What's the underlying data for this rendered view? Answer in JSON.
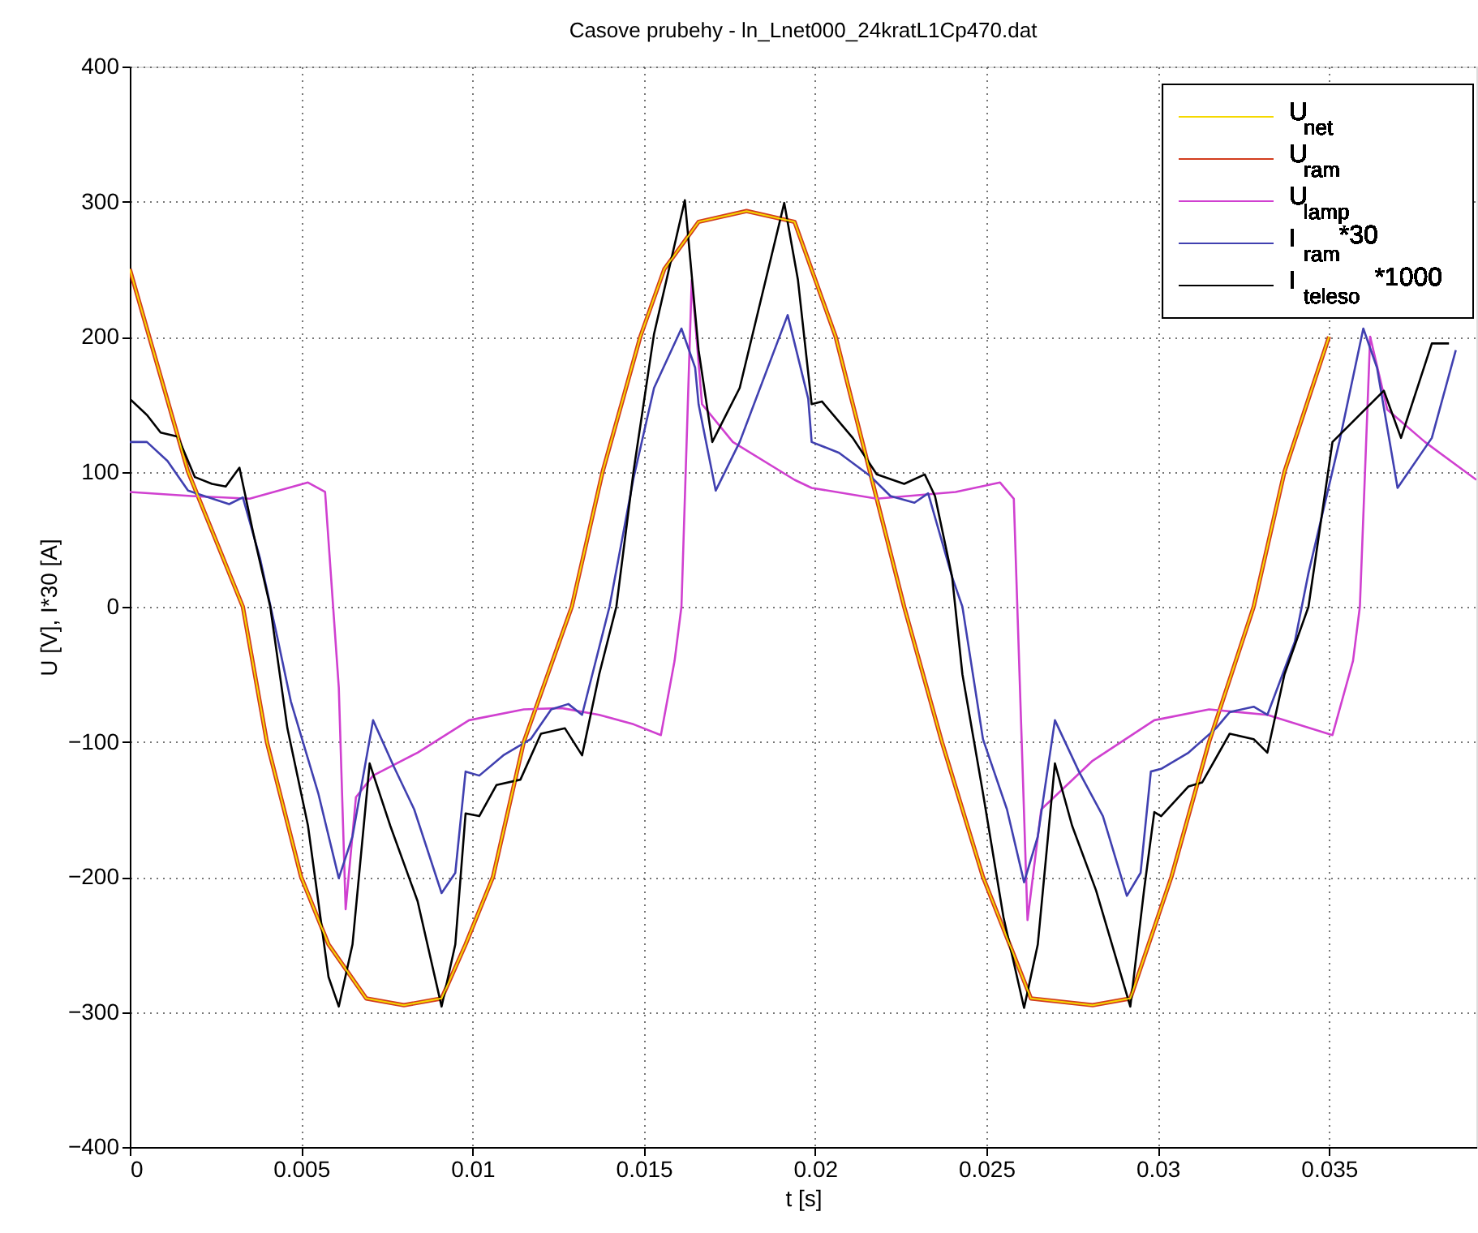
{
  "chart_data": {
    "type": "line",
    "title": "Casove prubehy - ln_Lnet000_24kratL1Cp470.dat",
    "xlabel": "t [s]",
    "ylabel": "U [V], I*30 [A]",
    "xlim": [
      0,
      0.0393
    ],
    "xticks": [
      0,
      0.005,
      0.01,
      0.015,
      0.02,
      0.025,
      0.03,
      0.035
    ],
    "ylim": [
      -400,
      400
    ],
    "yticks": [
      -400,
      -300,
      -200,
      -100,
      0,
      100,
      200,
      300,
      400
    ],
    "grid": true,
    "legend": "top right",
    "line_style": "solid",
    "marker": "none",
    "series": [
      {
        "name": "U$_{net}$",
        "color": "#f5d800",
        "x": [
          0,
          0.0017,
          0.0033,
          0.004,
          0.005,
          0.0058,
          0.0069,
          0.008,
          0.0091,
          0.0098,
          0.0106,
          0.0115,
          0.0129,
          0.0138,
          0.0149,
          0.0156,
          0.0166,
          0.018,
          0.0194,
          0.0206,
          0.0216,
          0.0226,
          0.0237,
          0.0249,
          0.0263,
          0.0281,
          0.0292,
          0.0304,
          0.0315,
          0.0328,
          0.0337,
          0.035
        ],
        "values": [
          250,
          100,
          0,
          -100,
          -200,
          -250,
          -290,
          -295,
          -290,
          -250,
          -200,
          -100,
          0,
          100,
          200,
          250,
          285,
          293,
          285,
          200,
          100,
          0,
          -100,
          -200,
          -290,
          -295,
          -290,
          -200,
          -100,
          0,
          100,
          200
        ]
      },
      {
        "name": "U$_{ram}$",
        "color": "#d23c1e",
        "x": [
          0,
          0.0017,
          0.0033,
          0.004,
          0.005,
          0.0058,
          0.0069,
          0.008,
          0.0091,
          0.0098,
          0.0106,
          0.0115,
          0.0129,
          0.0138,
          0.0149,
          0.0156,
          0.0166,
          0.018,
          0.0194,
          0.0206,
          0.0216,
          0.0226,
          0.0237,
          0.0249,
          0.0263,
          0.0281,
          0.0292,
          0.0304,
          0.0315,
          0.0328,
          0.0337,
          0.035
        ],
        "values": [
          250,
          100,
          0,
          -100,
          -200,
          -250,
          -290,
          -295,
          -290,
          -250,
          -200,
          -100,
          0,
          100,
          200,
          250,
          285,
          293,
          285,
          200,
          100,
          0,
          -100,
          -200,
          -290,
          -295,
          -290,
          -200,
          -100,
          0,
          100,
          200
        ]
      },
      {
        "name": "U$_{lamp}$",
        "color": "#d040d0",
        "x": [
          0,
          0.0018,
          0.0035,
          0.0052,
          0.0057,
          0.0061,
          0.0063,
          0.0066,
          0.0071,
          0.0084,
          0.0099,
          0.0115,
          0.0126,
          0.0137,
          0.0147,
          0.0155,
          0.0159,
          0.0161,
          0.0164,
          0.0167,
          0.0176,
          0.0194,
          0.0199,
          0.0218,
          0.0241,
          0.0254,
          0.0258,
          0.0262,
          0.0266,
          0.0281,
          0.0299,
          0.0315,
          0.0332,
          0.0351,
          0.0357,
          0.0359,
          0.0362,
          0.0367,
          0.0378,
          0.0393
        ],
        "values": [
          85,
          82,
          80,
          92,
          85,
          -60,
          -224,
          -141,
          -125,
          -108,
          -84,
          -76,
          -75,
          -80,
          -87,
          -95,
          -40,
          0,
          242,
          150,
          122,
          94,
          88,
          80,
          85,
          92,
          80,
          -232,
          -150,
          -114,
          -84,
          -76,
          -80,
          -95,
          -40,
          0,
          200,
          146,
          122,
          94
        ]
      },
      {
        "name": "I$_{ram}$*30",
        "color": "#4040b0",
        "x": [
          0,
          0.0005,
          0.0011,
          0.0017,
          0.0029,
          0.0033,
          0.0038,
          0.0043,
          0.0047,
          0.0055,
          0.0061,
          0.0065,
          0.0071,
          0.0077,
          0.0083,
          0.0091,
          0.0095,
          0.0098,
          0.0102,
          0.0109,
          0.0117,
          0.0123,
          0.0128,
          0.0132,
          0.014,
          0.0147,
          0.0153,
          0.0161,
          0.0165,
          0.0166,
          0.0171,
          0.0178,
          0.0192,
          0.0198,
          0.0199,
          0.0207,
          0.0216,
          0.0222,
          0.0229,
          0.0233,
          0.024,
          0.0243,
          0.0249,
          0.0256,
          0.0261,
          0.0265,
          0.027,
          0.0277,
          0.0284,
          0.0291,
          0.0295,
          0.0298,
          0.0301,
          0.0309,
          0.0317,
          0.0321,
          0.0328,
          0.0332,
          0.034,
          0.0344,
          0.0353,
          0.036,
          0.0364,
          0.037,
          0.038,
          0.0387
        ],
        "values": [
          122,
          122,
          108,
          86,
          76,
          81,
          36,
          -22,
          -70,
          -138,
          -201,
          -170,
          -84,
          -118,
          -150,
          -212,
          -197,
          -122,
          -125,
          -110,
          -98,
          -76,
          -72,
          -80,
          0,
          95,
          162,
          206,
          177,
          150,
          86,
          122,
          216,
          154,
          122,
          114,
          97,
          82,
          77,
          84,
          22,
          0,
          -98,
          -150,
          -204,
          -170,
          -84,
          -122,
          -155,
          -214,
          -197,
          -122,
          -120,
          -108,
          -90,
          -78,
          -74,
          -80,
          -26,
          25,
          122,
          206,
          177,
          88,
          125,
          190
        ]
      },
      {
        "name": "I$_{teleso}$*1000",
        "color": "#000000",
        "x": [
          0,
          0.0005,
          0.0009,
          0.0014,
          0.0019,
          0.0024,
          0.0028,
          0.0032,
          0.0036,
          0.0041,
          0.0046,
          0.0052,
          0.0058,
          0.0061,
          0.0065,
          0.007,
          0.0076,
          0.0084,
          0.0091,
          0.0095,
          0.0098,
          0.0102,
          0.0107,
          0.0114,
          0.012,
          0.0127,
          0.0132,
          0.0137,
          0.0142,
          0.0147,
          0.0153,
          0.0162,
          0.0166,
          0.017,
          0.0178,
          0.0191,
          0.0195,
          0.0199,
          0.0202,
          0.0211,
          0.0218,
          0.0226,
          0.0232,
          0.0235,
          0.024,
          0.0243,
          0.0249,
          0.0255,
          0.0261,
          0.0265,
          0.027,
          0.0275,
          0.0282,
          0.0292,
          0.0296,
          0.0299,
          0.0301,
          0.0309,
          0.0313,
          0.0321,
          0.0328,
          0.0332,
          0.0337,
          0.0344,
          0.0351,
          0.0366,
          0.0371,
          0.038,
          0.0385
        ],
        "values": [
          154,
          142,
          129,
          126,
          96,
          91,
          89,
          103,
          55,
          0,
          -90,
          -162,
          -274,
          -296,
          -250,
          -116,
          -162,
          -218,
          -296,
          -250,
          -153,
          -155,
          -132,
          -128,
          -94,
          -90,
          -110,
          -50,
          0,
          100,
          202,
          301,
          190,
          122,
          162,
          299,
          242,
          150,
          152,
          125,
          98,
          91,
          98,
          82,
          22,
          -50,
          -138,
          -230,
          -297,
          -250,
          -116,
          -162,
          -210,
          -296,
          -210,
          -152,
          -155,
          -133,
          -130,
          -94,
          -98,
          -108,
          -50,
          0,
          122,
          160,
          125,
          195,
          195
        ]
      }
    ]
  }
}
